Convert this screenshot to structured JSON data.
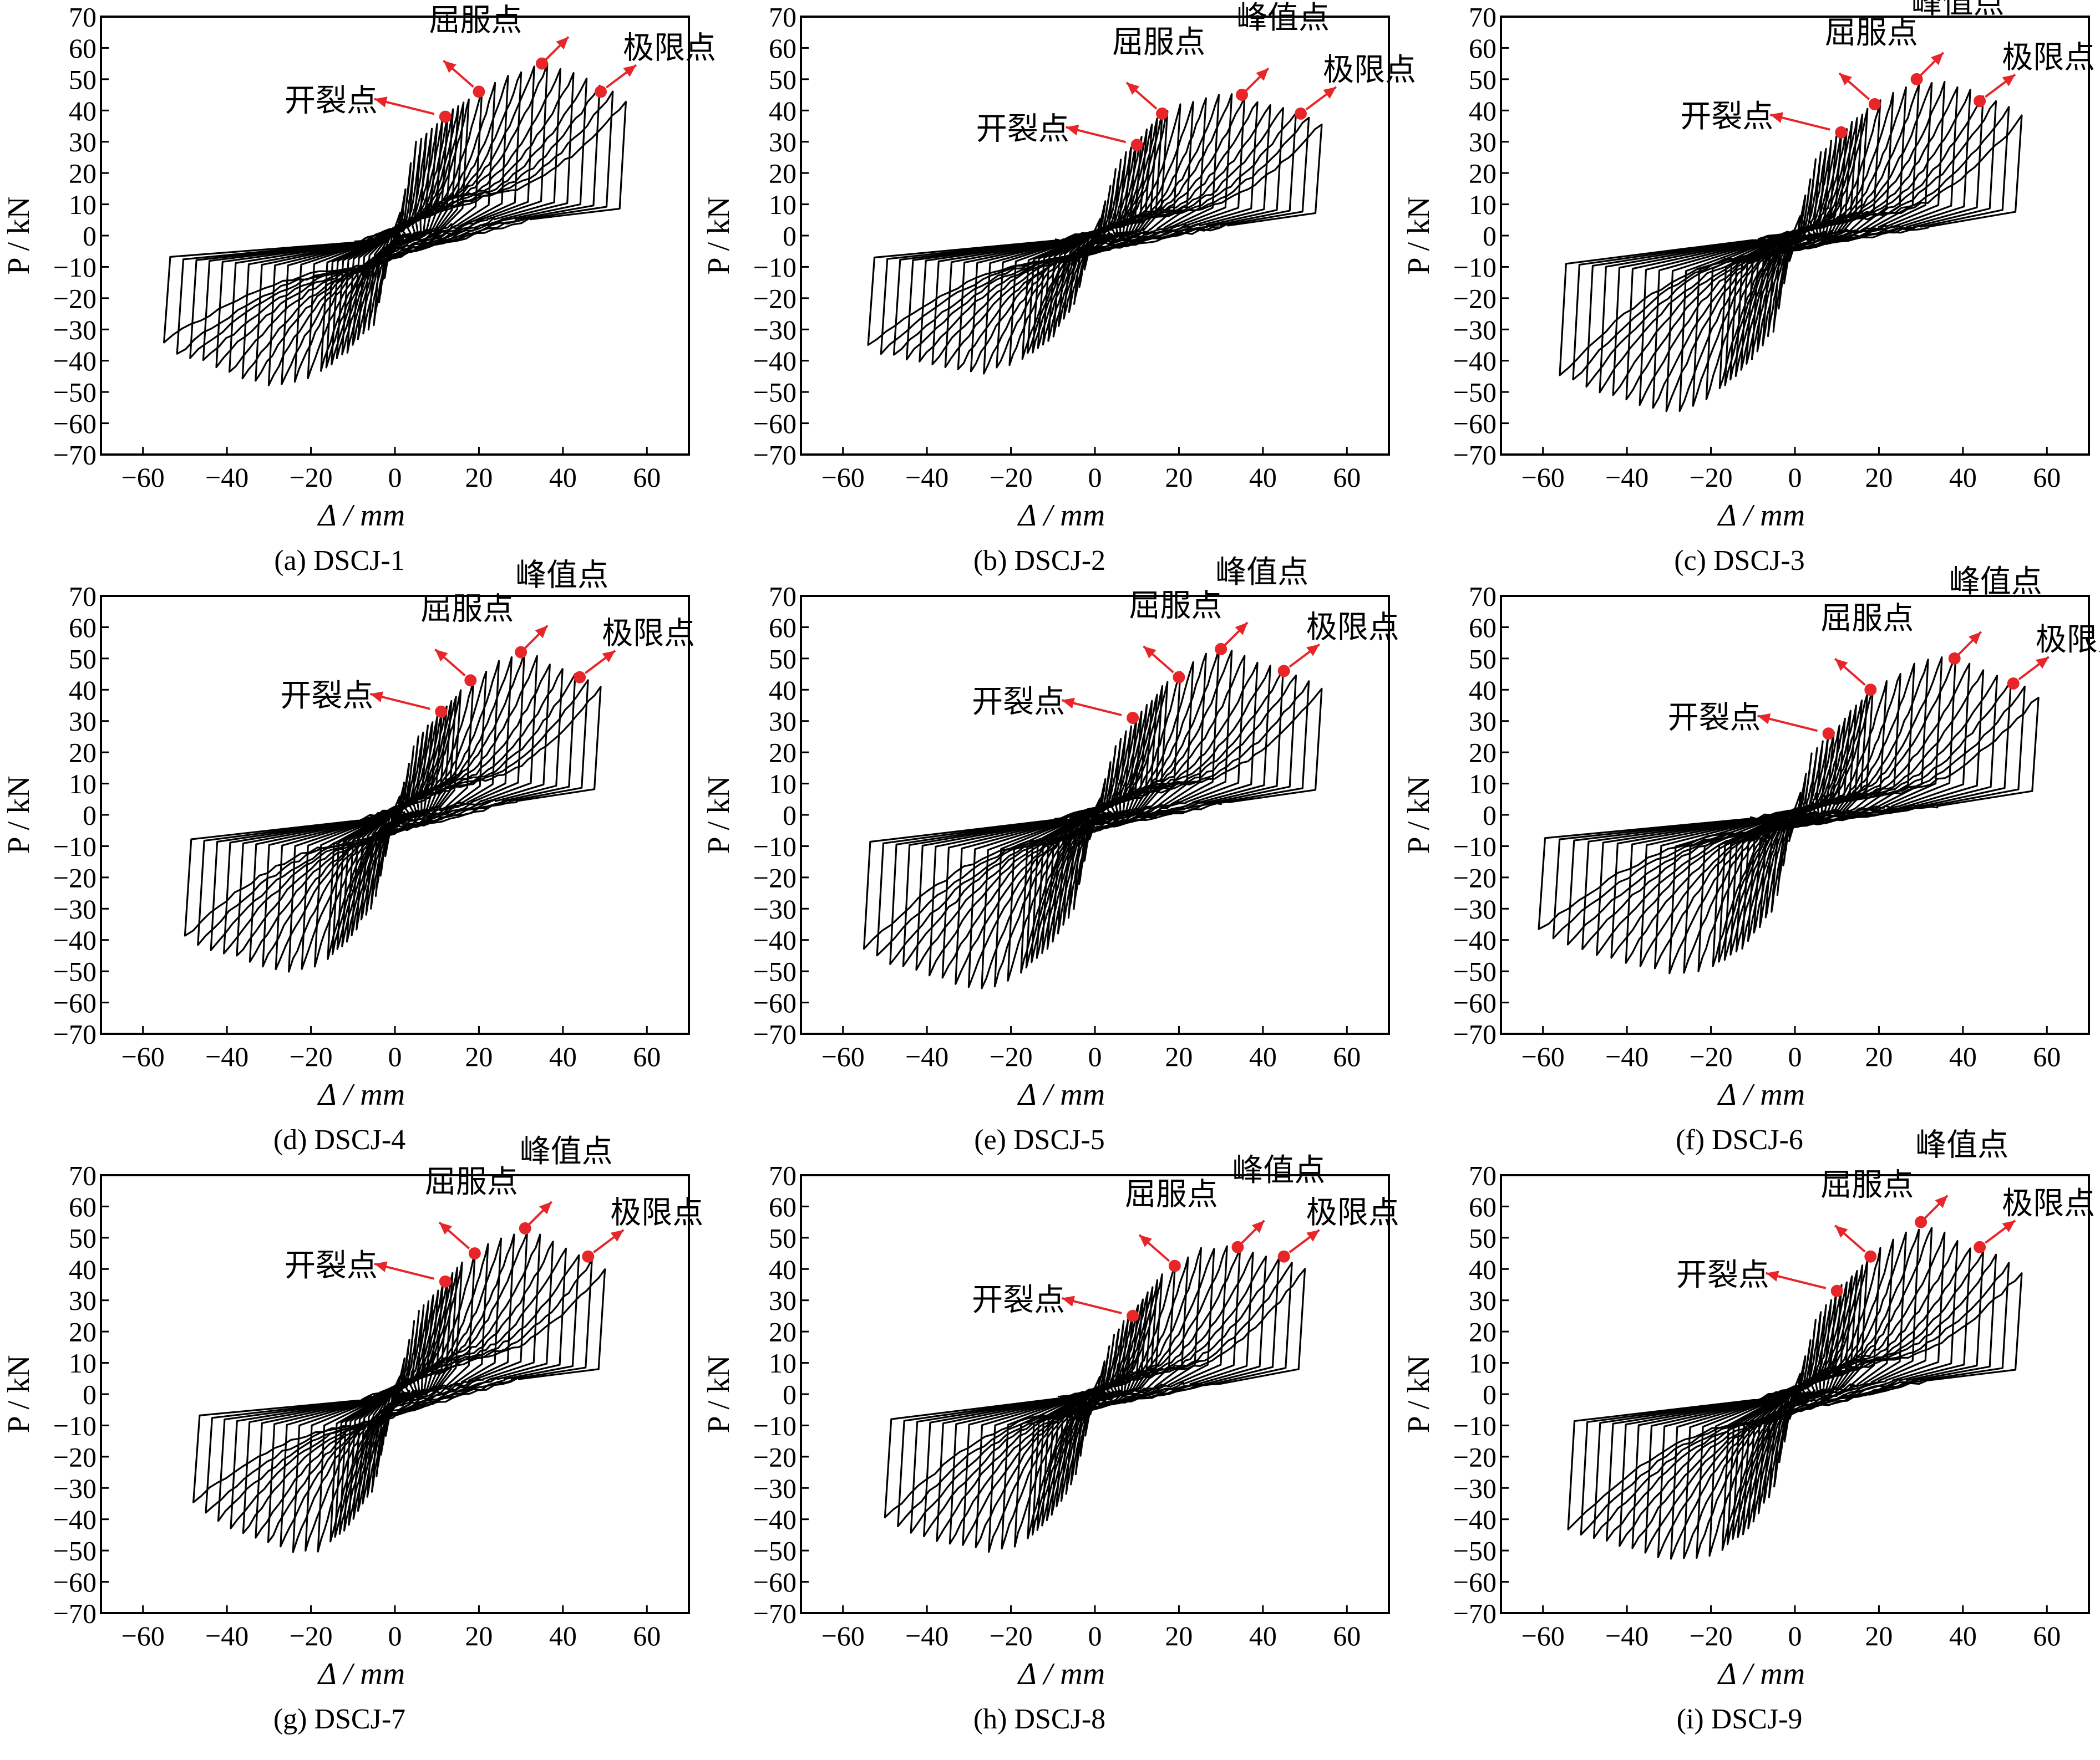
{
  "figure": {
    "x_axis_label": "Δ / mm",
    "y_axis_label": "P / kN",
    "x_ticks": [
      -60,
      -40,
      -20,
      0,
      20,
      40,
      60
    ],
    "y_ticks": [
      70,
      60,
      50,
      40,
      30,
      20,
      10,
      0,
      -10,
      -20,
      -30,
      -40,
      -50,
      -60,
      -70
    ],
    "annotation_color": "#e8262a",
    "curve_color": "#000000",
    "point_labels": {
      "cracking": "开裂点",
      "yield": "屈服点",
      "peak": "峰值点",
      "ultimate": "极限点"
    }
  },
  "chart_data": [
    {
      "type": "line",
      "caption": "(a) DSCJ-1",
      "xlabel": "Δ / mm",
      "ylabel": "P / kN",
      "xlim": [
        -70,
        70
      ],
      "ylim": [
        -70,
        70
      ],
      "grid": false,
      "envelope_pos": {
        "x": [
          0,
          5,
          12,
          20,
          28,
          36,
          44,
          52,
          55
        ],
        "y": [
          0,
          30,
          38,
          46,
          52,
          55,
          51,
          46,
          43
        ]
      },
      "envelope_neg": {
        "x": [
          0,
          -5,
          -12,
          -20,
          -28,
          -36,
          -44,
          -52,
          -55
        ],
        "y": [
          0,
          -28,
          -38,
          -45,
          -48,
          -46,
          -41,
          -38,
          -34
        ]
      },
      "pinch_pos": 13,
      "pinch_neg": -11,
      "cycles": 12,
      "points": {
        "cracking": {
          "x": 12,
          "y": 38
        },
        "yield": {
          "x": 20,
          "y": 46
        },
        "peak": {
          "x": 35,
          "y": 55
        },
        "ultimate": {
          "x": 49,
          "y": 46
        }
      }
    },
    {
      "type": "line",
      "caption": "(b) DSCJ-2",
      "xlabel": "Δ / mm",
      "ylabel": "P / kN",
      "xlim": [
        -70,
        70
      ],
      "ylim": [
        -70,
        70
      ],
      "grid": false,
      "envelope_pos": {
        "x": [
          0,
          5,
          9,
          16,
          25,
          34,
          42,
          50,
          54
        ],
        "y": [
          0,
          22,
          29,
          39,
          44,
          45,
          42,
          39,
          36
        ]
      },
      "envelope_neg": {
        "x": [
          0,
          -5,
          -10,
          -18,
          -26,
          -34,
          -42,
          -50,
          -54
        ],
        "y": [
          0,
          -22,
          -32,
          -40,
          -44,
          -43,
          -40,
          -38,
          -35
        ]
      },
      "pinch_pos": 8,
      "pinch_neg": -8,
      "cycles": 12,
      "points": {
        "cracking": {
          "x": 10,
          "y": 29
        },
        "yield": {
          "x": 16,
          "y": 39
        },
        "peak": {
          "x": 35,
          "y": 45
        },
        "ultimate": {
          "x": 49,
          "y": 39
        }
      }
    },
    {
      "type": "line",
      "caption": "(c) DSCJ-3",
      "xlabel": "Δ / mm",
      "ylabel": "P / kN",
      "xlim": [
        -70,
        70
      ],
      "ylim": [
        -70,
        70
      ],
      "grid": false,
      "envelope_pos": {
        "x": [
          0,
          5,
          11,
          19,
          27,
          35,
          43,
          50,
          54
        ],
        "y": [
          0,
          25,
          33,
          42,
          48,
          49,
          46,
          42,
          38
        ]
      },
      "envelope_neg": {
        "x": [
          0,
          -5,
          -12,
          -20,
          -28,
          -36,
          -44,
          -52,
          -56
        ],
        "y": [
          0,
          -30,
          -42,
          -52,
          -57,
          -55,
          -51,
          -47,
          -45
        ]
      },
      "pinch_pos": 7,
      "pinch_neg": -7,
      "cycles": 12,
      "points": {
        "cracking": {
          "x": 11,
          "y": 33
        },
        "yield": {
          "x": 19,
          "y": 42
        },
        "peak": {
          "x": 29,
          "y": 50
        },
        "ultimate": {
          "x": 44,
          "y": 43
        }
      }
    },
    {
      "type": "line",
      "caption": "(d) DSCJ-4",
      "xlabel": "Δ / mm",
      "ylabel": "P / kN",
      "xlim": [
        -70,
        70
      ],
      "ylim": [
        -70,
        70
      ],
      "grid": false,
      "envelope_pos": {
        "x": [
          0,
          5,
          11,
          18,
          25,
          32,
          39,
          45,
          49
        ],
        "y": [
          0,
          24,
          33,
          43,
          49,
          52,
          47,
          44,
          41
        ]
      },
      "envelope_neg": {
        "x": [
          0,
          -5,
          -11,
          -18,
          -25,
          -32,
          -39,
          -46,
          -50
        ],
        "y": [
          0,
          -28,
          -40,
          -48,
          -50,
          -48,
          -45,
          -42,
          -39
        ]
      },
      "pinch_pos": 11,
      "pinch_neg": -9,
      "cycles": 11,
      "points": {
        "cracking": {
          "x": 11,
          "y": 33
        },
        "yield": {
          "x": 18,
          "y": 43
        },
        "peak": {
          "x": 30,
          "y": 52
        },
        "ultimate": {
          "x": 44,
          "y": 44
        }
      }
    },
    {
      "type": "line",
      "caption": "(e) DSCJ-5",
      "xlabel": "Δ / mm",
      "ylabel": "P / kN",
      "xlim": [
        -70,
        70
      ],
      "ylim": [
        -70,
        70
      ],
      "grid": false,
      "envelope_pos": {
        "x": [
          0,
          5,
          10,
          18,
          26,
          33,
          40,
          48,
          54
        ],
        "y": [
          0,
          22,
          31,
          44,
          52,
          53,
          48,
          45,
          40
        ]
      },
      "envelope_neg": {
        "x": [
          0,
          -5,
          -11,
          -19,
          -27,
          -35,
          -43,
          -50,
          -55
        ],
        "y": [
          0,
          -30,
          -42,
          -52,
          -56,
          -53,
          -49,
          -47,
          -43
        ]
      },
      "pinch_pos": 10,
      "pinch_neg": -8,
      "cycles": 12,
      "points": {
        "cracking": {
          "x": 9,
          "y": 31
        },
        "yield": {
          "x": 20,
          "y": 44
        },
        "peak": {
          "x": 30,
          "y": 53
        },
        "ultimate": {
          "x": 45,
          "y": 46
        }
      }
    },
    {
      "type": "line",
      "caption": "(f) DSCJ-6",
      "xlabel": "Δ / mm",
      "ylabel": "P / kN",
      "xlim": [
        -70,
        70
      ],
      "ylim": [
        -70,
        70
      ],
      "grid": false,
      "envelope_pos": {
        "x": [
          0,
          4,
          8,
          18,
          28,
          38,
          46,
          53,
          58
        ],
        "y": [
          0,
          20,
          25,
          40,
          48,
          51,
          46,
          42,
          38
        ]
      },
      "envelope_neg": {
        "x": [
          0,
          -5,
          -12,
          -20,
          -28,
          -38,
          -48,
          -56,
          -61
        ],
        "y": [
          0,
          -30,
          -42,
          -49,
          -51,
          -48,
          -44,
          -40,
          -37
        ]
      },
      "pinch_pos": 7,
      "pinch_neg": -6,
      "cycles": 12,
      "points": {
        "cracking": {
          "x": 8,
          "y": 26
        },
        "yield": {
          "x": 18,
          "y": 40
        },
        "peak": {
          "x": 38,
          "y": 50
        },
        "ultimate": {
          "x": 52,
          "y": 42
        }
      }
    },
    {
      "type": "line",
      "caption": "(g) DSCJ-7",
      "xlabel": "Δ / mm",
      "ylabel": "P / kN",
      "xlim": [
        -70,
        70
      ],
      "ylim": [
        -70,
        70
      ],
      "grid": false,
      "envelope_pos": {
        "x": [
          0,
          5,
          12,
          18,
          25,
          32,
          39,
          45,
          50
        ],
        "y": [
          0,
          25,
          36,
          45,
          50,
          52,
          48,
          44,
          40
        ]
      },
      "envelope_neg": {
        "x": [
          0,
          -5,
          -11,
          -18,
          -25,
          -32,
          -39,
          -45,
          -48
        ],
        "y": [
          0,
          -30,
          -42,
          -50,
          -50,
          -47,
          -43,
          -38,
          -34
        ]
      },
      "pinch_pos": 12,
      "pinch_neg": -10,
      "cycles": 11,
      "points": {
        "cracking": {
          "x": 12,
          "y": 36
        },
        "yield": {
          "x": 19,
          "y": 45
        },
        "peak": {
          "x": 31,
          "y": 53
        },
        "ultimate": {
          "x": 46,
          "y": 44
        }
      }
    },
    {
      "type": "line",
      "caption": "(h) DSCJ-8",
      "xlabel": "Δ / mm",
      "ylabel": "P / kN",
      "xlim": [
        -70,
        70
      ],
      "ylim": [
        -70,
        70
      ],
      "grid": false,
      "envelope_pos": {
        "x": [
          0,
          4,
          8,
          18,
          26,
          32,
          38,
          45,
          50
        ],
        "y": [
          0,
          18,
          25,
          41,
          47,
          47,
          45,
          43,
          40
        ]
      },
      "envelope_neg": {
        "x": [
          0,
          -5,
          -11,
          -18,
          -26,
          -34,
          -42,
          -48,
          -50
        ],
        "y": [
          0,
          -28,
          -40,
          -48,
          -50,
          -48,
          -45,
          -42,
          -40
        ]
      },
      "pinch_pos": 8,
      "pinch_neg": -7,
      "cycles": 11,
      "points": {
        "cracking": {
          "x": 9,
          "y": 25
        },
        "yield": {
          "x": 19,
          "y": 41
        },
        "peak": {
          "x": 34,
          "y": 47
        },
        "ultimate": {
          "x": 45,
          "y": 44
        }
      }
    },
    {
      "type": "line",
      "caption": "(i) DSCJ-9",
      "xlabel": "Δ / mm",
      "ylabel": "P / kN",
      "xlim": [
        -70,
        70
      ],
      "ylim": [
        -70,
        70
      ],
      "grid": false,
      "envelope_pos": {
        "x": [
          0,
          5,
          10,
          18,
          26,
          32,
          40,
          48,
          54
        ],
        "y": [
          0,
          24,
          33,
          44,
          52,
          54,
          48,
          44,
          39
        ]
      },
      "envelope_neg": {
        "x": [
          0,
          -5,
          -11,
          -19,
          -27,
          -35,
          -43,
          -50,
          -54
        ],
        "y": [
          0,
          -30,
          -43,
          -51,
          -53,
          -51,
          -48,
          -45,
          -43
        ]
      },
      "pinch_pos": 11,
      "pinch_neg": -9,
      "cycles": 12,
      "points": {
        "cracking": {
          "x": 10,
          "y": 33
        },
        "yield": {
          "x": 18,
          "y": 44
        },
        "peak": {
          "x": 30,
          "y": 55
        },
        "ultimate": {
          "x": 44,
          "y": 47
        }
      }
    }
  ]
}
